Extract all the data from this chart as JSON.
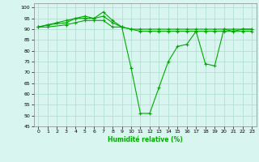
{
  "title": "",
  "xlabel": "Humidité relative (%)",
  "ylabel": "",
  "bg_color": "#d9f5f0",
  "grid_color": "#aaddcc",
  "line_color": "#00aa00",
  "xlim": [
    -0.5,
    23.5
  ],
  "ylim": [
    45,
    102
  ],
  "yticks": [
    45,
    50,
    55,
    60,
    65,
    70,
    75,
    80,
    85,
    90,
    95,
    100
  ],
  "xticks": [
    0,
    1,
    2,
    3,
    4,
    5,
    6,
    7,
    8,
    9,
    10,
    11,
    12,
    13,
    14,
    15,
    16,
    17,
    18,
    19,
    20,
    21,
    22,
    23
  ],
  "series": [
    {
      "x": [
        0,
        1,
        2,
        3,
        4,
        5,
        6,
        7,
        8,
        9,
        10,
        11,
        12,
        13,
        14,
        15,
        16,
        17,
        18,
        19,
        20,
        21,
        22,
        23
      ],
      "y": [
        91,
        92,
        93,
        94,
        95,
        95,
        95,
        98,
        94,
        91,
        72,
        51,
        51,
        63,
        75,
        82,
        83,
        89,
        74,
        73,
        90,
        89,
        90,
        90
      ]
    },
    {
      "x": [
        0,
        1,
        3,
        4,
        5,
        6,
        7,
        8,
        9,
        10,
        11,
        12,
        13,
        14,
        15,
        16,
        17,
        18,
        19,
        20,
        21,
        22,
        23
      ],
      "y": [
        91,
        92,
        93,
        95,
        96,
        95,
        96,
        93,
        91,
        90,
        90,
        90,
        90,
        90,
        90,
        90,
        90,
        90,
        90,
        90,
        90,
        90,
        90
      ]
    },
    {
      "x": [
        0,
        1,
        3,
        4,
        5,
        6,
        7,
        8,
        9,
        10,
        11,
        12,
        13,
        14,
        15,
        16,
        17,
        18,
        19,
        20,
        21,
        22,
        23
      ],
      "y": [
        91,
        91,
        92,
        93,
        94,
        94,
        94,
        91,
        91,
        90,
        89,
        89,
        89,
        89,
        89,
        89,
        89,
        89,
        89,
        89,
        89,
        89,
        89
      ]
    }
  ]
}
